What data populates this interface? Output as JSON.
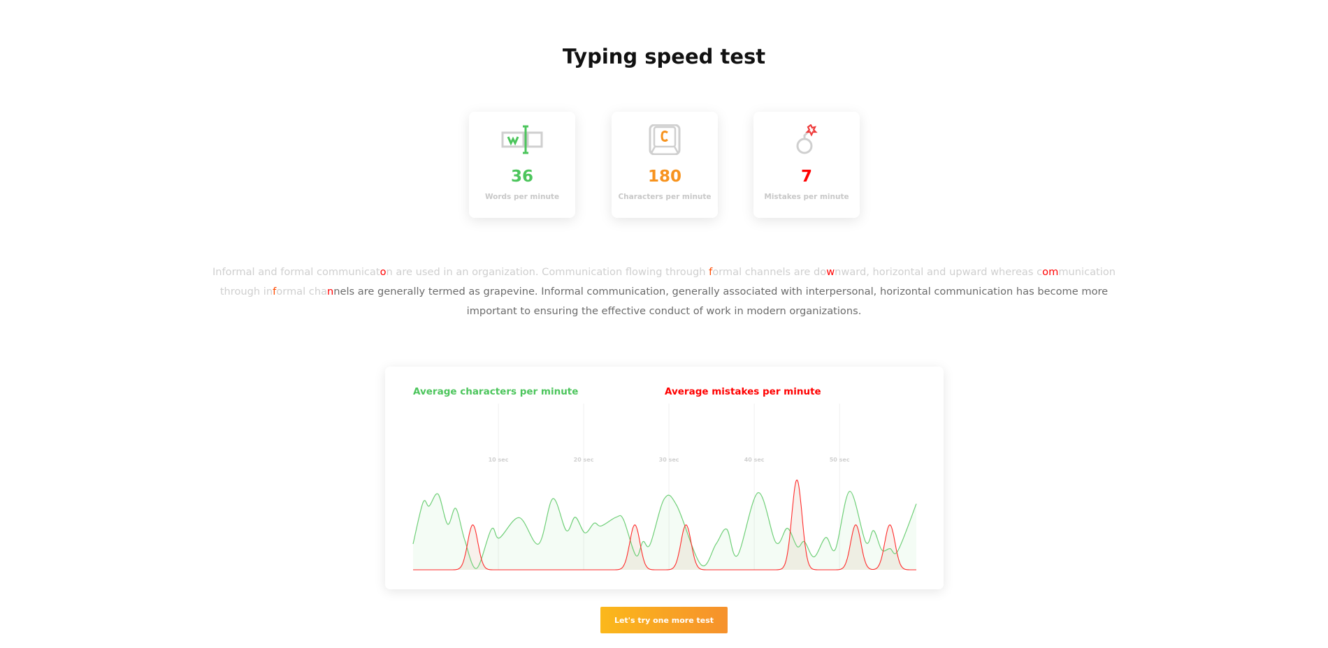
{
  "title": "Typing speed test",
  "stats": [
    {
      "icon": "word-cursor-icon",
      "value": "36",
      "label": "Words per minute",
      "color": "#4cc55c"
    },
    {
      "icon": "keyboard-key-c-icon",
      "value": "180",
      "label": "Characters per minute",
      "color": "#f7931e"
    },
    {
      "icon": "bomb-icon",
      "value": "7",
      "label": "Mistakes per minute",
      "color": "#ff0000"
    }
  ],
  "passage": [
    {
      "t": "Informal and formal communicat",
      "s": "typed"
    },
    {
      "t": "o",
      "s": "error"
    },
    {
      "t": "n are used in an organization. Communication flowing through ",
      "s": "typed"
    },
    {
      "t": "f",
      "s": "current"
    },
    {
      "t": "ormal channels are do",
      "s": "typed"
    },
    {
      "t": "w",
      "s": "error"
    },
    {
      "t": "nward, horizontal and upward whereas c",
      "s": "typed"
    },
    {
      "t": "om",
      "s": "error"
    },
    {
      "t": "munication through in",
      "s": "typed"
    },
    {
      "t": "f",
      "s": "current"
    },
    {
      "t": "ormal cha",
      "s": "typed"
    },
    {
      "t": "n",
      "s": "error"
    },
    {
      "t": "nels are generally termed as grapevine. Informal communication, generally associated with interpersonal, horizontal communication has become more important to ensuring the effective conduct of work in modern organizations.",
      "s": "pending"
    }
  ],
  "chart_data": {
    "type": "area",
    "xlabel": "",
    "ylabel": "",
    "xlim": [
      0,
      59
    ],
    "x_ticks": [
      10,
      20,
      30,
      40,
      50
    ],
    "x_tick_labels": [
      "10 sec",
      "20 sec",
      "30 sec",
      "40 sec",
      "50 sec"
    ],
    "grid": "vertical",
    "series": [
      {
        "name": "Average characters per minute",
        "color": "#4cc55c",
        "ylim": [
          0,
          360
        ],
        "x": [
          0,
          1.17,
          1.88,
          2.93,
          4.05,
          5.01,
          6.06,
          7.44,
          9.19,
          10.11,
          12.45,
          14.71,
          16.38,
          17.97,
          19.01,
          20.14,
          21.23,
          22.06,
          23.82,
          24.66,
          26.12,
          26.95,
          27.79,
          29.46,
          30.92,
          33.76,
          35.52,
          36.77,
          38.03,
          40.45,
          42.54,
          43.88,
          45.05,
          45.88,
          47.01,
          48.39,
          49.52,
          51.19,
          53.07,
          53.99,
          54.95,
          55.91,
          56.83,
          59
        ],
        "y": [
          56,
          146,
          138,
          164,
          99,
          133,
          64,
          3,
          88,
          69,
          113,
          56,
          154,
          85,
          114,
          80,
          101,
          95,
          114,
          109,
          31,
          61,
          55,
          154,
          139,
          11,
          56,
          88,
          31,
          167,
          59,
          90,
          50,
          61,
          28,
          70,
          45,
          170,
          60,
          85,
          43,
          46,
          41,
          143
        ]
      },
      {
        "name": "Average mistakes per minute",
        "color": "#ff0000",
        "ylim": [
          0,
          3.7
        ],
        "x": [
          7.0,
          26.0,
          32.0,
          45.0,
          51.9,
          55.9
        ],
        "y": [
          1,
          1,
          1,
          2,
          1,
          1
        ]
      }
    ]
  },
  "button": {
    "label": "Let's try one more test"
  }
}
